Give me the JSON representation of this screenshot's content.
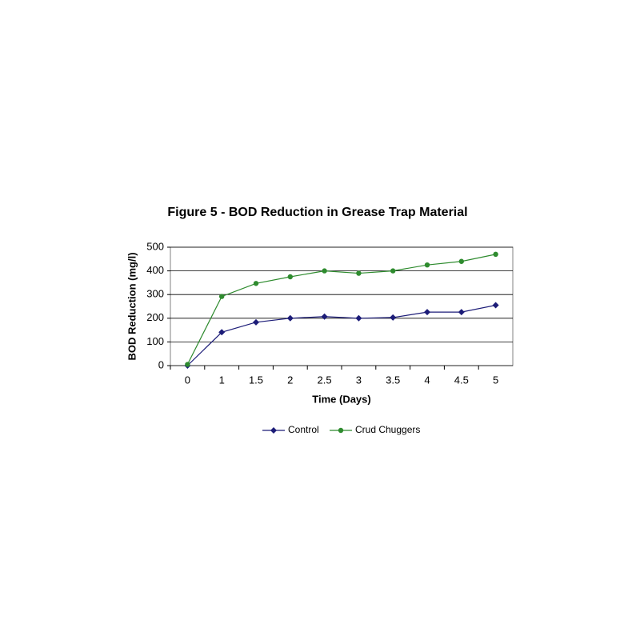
{
  "chart_data": {
    "type": "line",
    "title": "Figure 5 - BOD Reduction in Grease Trap Material",
    "x_label": "Time (Days)",
    "y_label": "BOD Reduction (mg/l)",
    "categories": [
      "0",
      "1",
      "1.5",
      "2",
      "2.5",
      "3",
      "3.5",
      "4",
      "4.5",
      "5"
    ],
    "series": [
      {
        "name": "Control",
        "color": "#1c1c78",
        "marker": "diamond",
        "values": [
          0,
          141,
          183,
          200,
          207,
          200,
          203,
          226,
          226,
          255
        ]
      },
      {
        "name": "Crud Chuggers",
        "color": "#2e8b2e",
        "marker": "circle",
        "values": [
          5,
          292,
          347,
          375,
          400,
          390,
          400,
          425,
          440,
          470
        ]
      }
    ],
    "ylim": [
      0,
      500
    ],
    "yticks": [
      0,
      100,
      200,
      300,
      400,
      500
    ],
    "grid": true,
    "legend": "bottom"
  }
}
